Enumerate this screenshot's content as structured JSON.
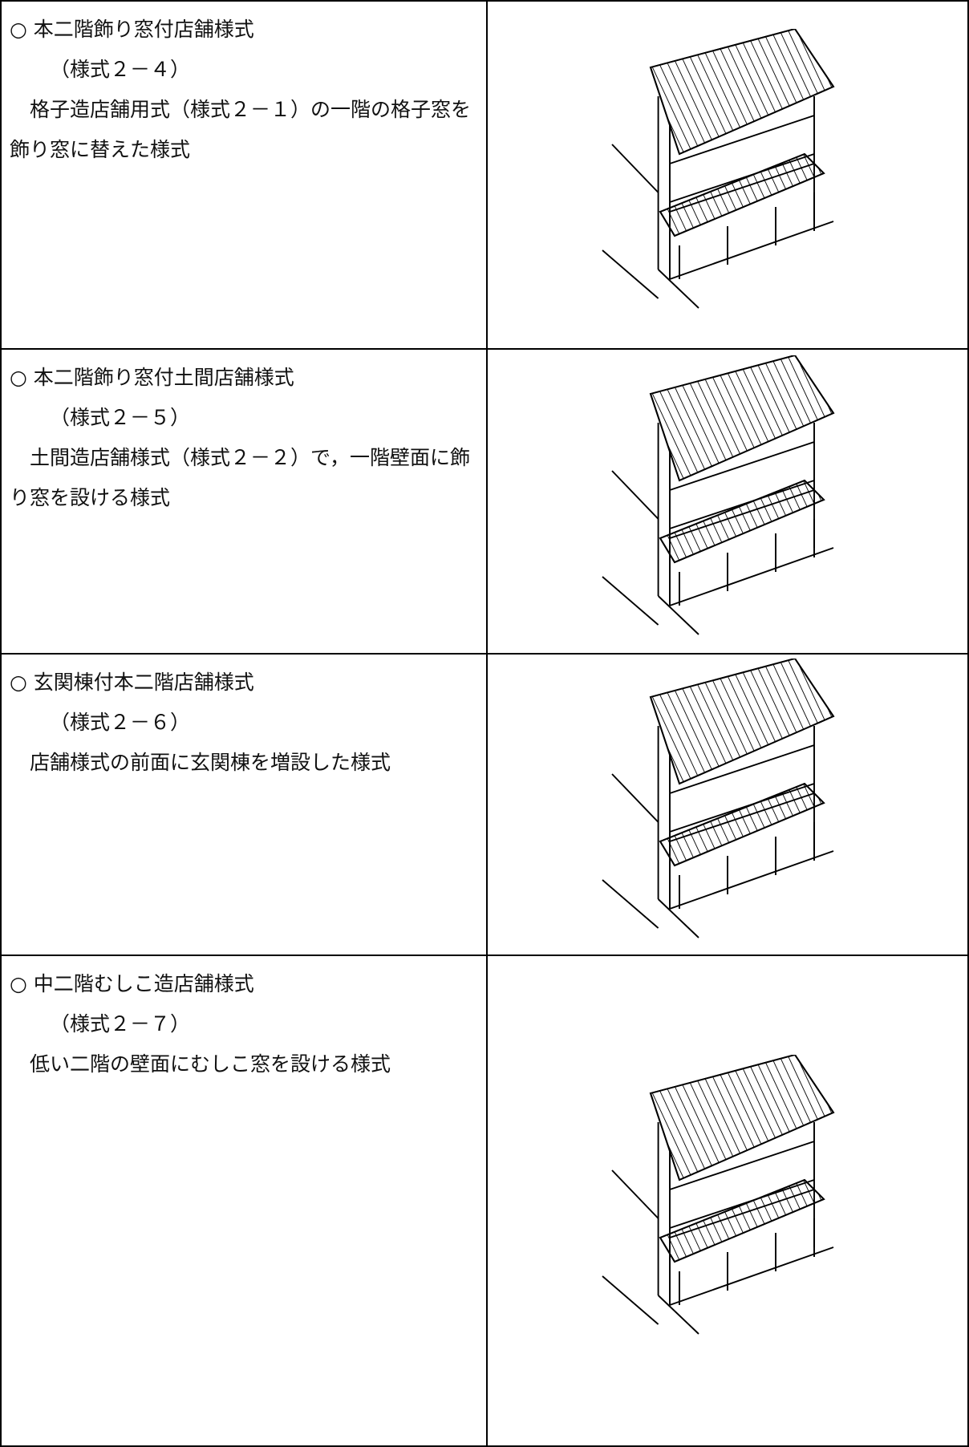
{
  "rows": [
    {
      "title": "○ 本二階飾り窓付店舗様式",
      "code": "（様式２－４）",
      "description": "格子造店舗用式（様式２－１）の一階の格子窓を飾り窓に替えた様式"
    },
    {
      "title": "○ 本二階飾り窓付土間店舗様式",
      "code": "（様式２－５）",
      "description": "土間造店舗様式（様式２－２）で，一階壁面に飾り窓を設ける様式"
    },
    {
      "title": "○ 玄関棟付本二階店舗様式",
      "code": "（様式２－６）",
      "description": "店舗様式の前面に玄関棟を増設した様式"
    },
    {
      "title": "○ 中二階むしこ造店舗様式",
      "code": "（様式２－７）",
      "description": "低い二階の壁面にむしこ窓を設ける様式"
    }
  ]
}
